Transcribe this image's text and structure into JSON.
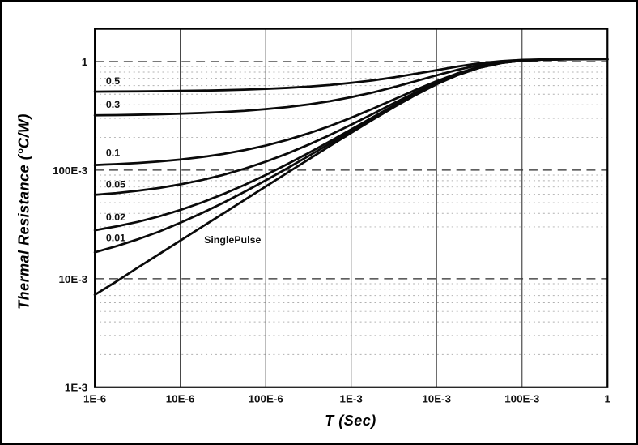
{
  "chart_data": {
    "type": "line",
    "title": "",
    "xlabel": "T (Sec)",
    "ylabel": "Thermal Resistance (°C/W)",
    "x_scale": "log",
    "y_scale": "log",
    "xlim": [
      1e-06,
      1
    ],
    "ylim": [
      0.001,
      2
    ],
    "grid": {
      "vertical": "solid",
      "horizontal_major": "dashed",
      "horizontal_minor": "dashed-light",
      "legend": "none"
    },
    "colors": {
      "curve": "#0a0a0a",
      "grid_major": "#2a2a2a",
      "grid_minor": "#b0b0b0",
      "grid_vertical": "#3a3a3a",
      "axis_border": "#000000",
      "background": "#ffffff",
      "text": "#111111"
    },
    "x_ticks": [
      {
        "value": 1e-06,
        "label": "1E-6"
      },
      {
        "value": 1e-05,
        "label": "10E-6"
      },
      {
        "value": 0.0001,
        "label": "100E-6"
      },
      {
        "value": 0.001,
        "label": "1E-3"
      },
      {
        "value": 0.01,
        "label": "10E-3"
      },
      {
        "value": 0.1,
        "label": "100E-3"
      },
      {
        "value": 1,
        "label": "1"
      }
    ],
    "y_ticks": [
      {
        "value": 0.001,
        "label": "1E-3"
      },
      {
        "value": 0.01,
        "label": "10E-3"
      },
      {
        "value": 0.1,
        "label": "100E-3"
      },
      {
        "value": 1,
        "label": "1"
      }
    ],
    "x": [
      1e-06,
      1.78e-06,
      3.16e-06,
      5.62e-06,
      1e-05,
      1.78e-05,
      3.16e-05,
      5.62e-05,
      0.0001,
      0.000178,
      0.000316,
      0.000562,
      0.001,
      0.00178,
      0.00316,
      0.00562,
      0.01,
      0.0178,
      0.0316,
      0.0562,
      0.1,
      0.178,
      0.316,
      0.562,
      1
    ],
    "series": [
      {
        "name": "0.5",
        "label": {
          "text": "0.5",
          "x": 1.35e-06,
          "y": 0.62
        },
        "values": [
          0.5285,
          0.5297,
          0.5313,
          0.5334,
          0.5362,
          0.5399,
          0.5449,
          0.5515,
          0.5603,
          0.5721,
          0.5876,
          0.6082,
          0.6353,
          0.6704,
          0.715,
          0.7698,
          0.8336,
          0.9009,
          0.9624,
          1.0087,
          1.0354,
          1.0465,
          1.0495,
          1.05,
          1.05
        ]
      },
      {
        "name": "0.3",
        "label": {
          "text": "0.3",
          "x": 1.35e-06,
          "y": 0.375
        },
        "values": [
          0.32,
          0.3216,
          0.3238,
          0.3268,
          0.3307,
          0.3359,
          0.3429,
          0.3521,
          0.3645,
          0.3809,
          0.4027,
          0.4315,
          0.4694,
          0.5186,
          0.581,
          0.6578,
          0.747,
          0.8413,
          0.9274,
          0.9922,
          1.0296,
          1.045,
          1.0493,
          1.0499,
          1.05
        ]
      },
      {
        "name": "0.1",
        "label": {
          "text": "0.1",
          "x": 1.35e-06,
          "y": 0.135
        },
        "values": [
          0.1114,
          0.1135,
          0.1163,
          0.1201,
          0.1251,
          0.1319,
          0.1408,
          0.1527,
          0.1686,
          0.1898,
          0.2177,
          0.2548,
          0.3035,
          0.3668,
          0.447,
          0.5457,
          0.6604,
          0.7817,
          0.8924,
          0.9757,
          1.0238,
          1.0436,
          1.049,
          1.0499,
          1.05
        ]
      },
      {
        "name": "0.05",
        "label": {
          "text": "0.05",
          "x": 1.35e-06,
          "y": 0.069
        },
        "values": [
          0.0592,
          0.0615,
          0.0645,
          0.0684,
          0.0738,
          0.0809,
          0.0903,
          0.1029,
          0.1197,
          0.142,
          0.1715,
          0.2106,
          0.262,
          0.3288,
          0.4134,
          0.5177,
          0.6388,
          0.7668,
          0.8836,
          0.9716,
          1.0223,
          1.0433,
          1.049,
          1.0499,
          1.05
        ]
      },
      {
        "name": "0.02",
        "label": {
          "text": "0.02",
          "x": 1.35e-06,
          "y": 0.0345
        },
        "values": [
          0.0279,
          0.0303,
          0.0333,
          0.0374,
          0.0429,
          0.0503,
          0.06,
          0.073,
          0.0903,
          0.1133,
          0.1437,
          0.1841,
          0.2371,
          0.306,
          0.3933,
          0.5009,
          0.6258,
          0.7578,
          0.8784,
          0.9691,
          1.0215,
          1.0431,
          1.049,
          1.0499,
          1.05
        ]
      },
      {
        "name": "0.01",
        "label": {
          "text": "0.01",
          "x": 1.35e-06,
          "y": 0.0222
        },
        "values": [
          0.0175,
          0.0199,
          0.023,
          0.0271,
          0.0327,
          0.0401,
          0.0499,
          0.063,
          0.0805,
          0.1038,
          0.1345,
          0.1753,
          0.2288,
          0.2984,
          0.3866,
          0.4953,
          0.6215,
          0.7548,
          0.8766,
          0.9683,
          1.0212,
          1.043,
          1.0489,
          1.0499,
          1.05
        ]
      },
      {
        "name": "SinglePulse",
        "label": {
          "text": "SinglePulse",
          "x": 1.9e-05,
          "y": 0.0213
        },
        "values": [
          0.0071,
          0.0094,
          0.0126,
          0.0168,
          0.0224,
          0.0299,
          0.0398,
          0.053,
          0.0707,
          0.0942,
          0.1252,
          0.1664,
          0.2205,
          0.2908,
          0.3799,
          0.4897,
          0.6172,
          0.7519,
          0.8749,
          0.9675,
          1.0209,
          1.0429,
          1.0489,
          1.0499,
          1.05
        ]
      }
    ]
  }
}
